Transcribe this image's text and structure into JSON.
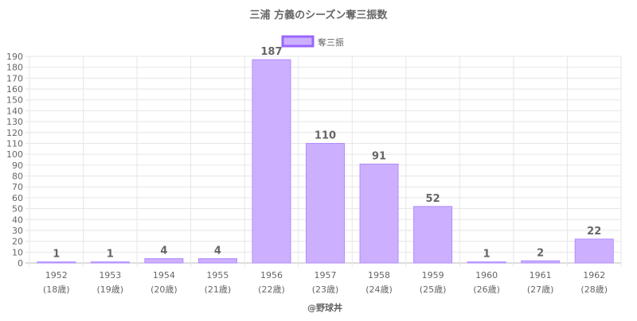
{
  "chart_data": {
    "type": "bar",
    "title": "三浦 方義のシーズン奪三振数",
    "legend": {
      "label": "奪三振",
      "position": "top"
    },
    "categories": [
      "1952",
      "1953",
      "1954",
      "1955",
      "1956",
      "1957",
      "1958",
      "1959",
      "1960",
      "1961",
      "1962"
    ],
    "sublabels": [
      "(18歳)",
      "(19歳)",
      "(20歳)",
      "(21歳)",
      "(22歳)",
      "(23歳)",
      "(24歳)",
      "(25歳)",
      "(26歳)",
      "(27歳)",
      "(28歳)"
    ],
    "series": [
      {
        "name": "奪三振",
        "values": [
          1,
          1,
          4,
          4,
          187,
          110,
          91,
          52,
          1,
          2,
          22
        ]
      }
    ],
    "ylim": [
      0,
      190
    ],
    "ytick_step": 10,
    "grid": true,
    "xlabel": "",
    "ylabel": "",
    "footer": "@野球丼",
    "colors": {
      "bar_fill": "#ccb0ff",
      "bar_stroke": "#b08cff",
      "legend_stroke": "#9966ff",
      "grid": "#e6e6e6",
      "text": "#666666"
    }
  }
}
